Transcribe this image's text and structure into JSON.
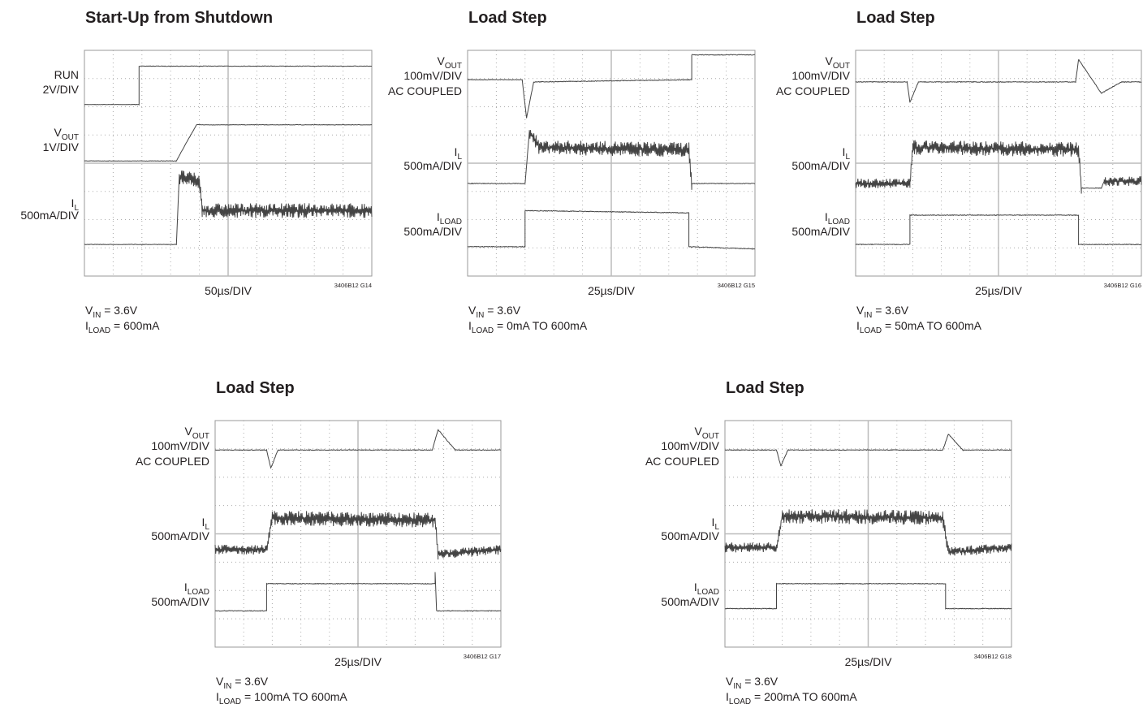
{
  "panels": [
    {
      "title": "Start-Up from Shutdown",
      "channels": [
        {
          "name": "RUN",
          "scale": "2V/DIV"
        },
        {
          "name": "V",
          "sub": "OUT",
          "scale": "1V/DIV"
        },
        {
          "name": "I",
          "sub": "L",
          "scale": "500mA/DIV"
        }
      ],
      "timebase": "50µs/DIV",
      "figure_id": "3406B12 G14",
      "conditions": [
        {
          "name": "V",
          "sub": "IN",
          "text": " = 3.6V"
        },
        {
          "name": "I",
          "sub": "LOAD",
          "text": " = 600mA"
        }
      ]
    },
    {
      "title": "Load Step",
      "channels": [
        {
          "name": "V",
          "sub": "OUT",
          "scale": "100mV/DIV",
          "note": "AC COUPLED"
        },
        {
          "name": "I",
          "sub": "L",
          "scale": "500mA/DIV"
        },
        {
          "name": "I",
          "sub": "LOAD",
          "scale": "500mA/DIV"
        }
      ],
      "timebase": "25µs/DIV",
      "figure_id": "3406B12 G15",
      "conditions": [
        {
          "name": "V",
          "sub": "IN",
          "text": " = 3.6V"
        },
        {
          "name": "I",
          "sub": "LOAD",
          "text": " = 0mA TO 600mA"
        }
      ]
    },
    {
      "title": "Load Step",
      "channels": [
        {
          "name": "V",
          "sub": "OUT",
          "scale": "100mV/DIV",
          "note": "AC COUPLED"
        },
        {
          "name": "I",
          "sub": "L",
          "scale": "500mA/DIV"
        },
        {
          "name": "I",
          "sub": "LOAD",
          "scale": "500mA/DIV"
        }
      ],
      "timebase": "25µs/DIV",
      "figure_id": "3406B12 G16",
      "conditions": [
        {
          "name": "V",
          "sub": "IN",
          "text": " = 3.6V"
        },
        {
          "name": "I",
          "sub": "LOAD",
          "text": " = 50mA TO 600mA"
        }
      ]
    },
    {
      "title": "Load Step",
      "channels": [
        {
          "name": "V",
          "sub": "OUT",
          "scale": "100mV/DIV",
          "note": "AC COUPLED"
        },
        {
          "name": "I",
          "sub": "L",
          "scale": "500mA/DIV"
        },
        {
          "name": "I",
          "sub": "LOAD",
          "scale": "500mA/DIV"
        }
      ],
      "timebase": "25µs/DIV",
      "figure_id": "3406B12 G17",
      "conditions": [
        {
          "name": "V",
          "sub": "IN",
          "text": " = 3.6V"
        },
        {
          "name": "I",
          "sub": "LOAD",
          "text": " = 100mA TO 600mA"
        }
      ]
    },
    {
      "title": "Load Step",
      "channels": [
        {
          "name": "V",
          "sub": "OUT",
          "scale": "100mV/DIV",
          "note": "AC COUPLED"
        },
        {
          "name": "I",
          "sub": "L",
          "scale": "500mA/DIV"
        },
        {
          "name": "I",
          "sub": "LOAD",
          "scale": "500mA/DIV"
        }
      ],
      "timebase": "25µs/DIV",
      "figure_id": "3406B12 G18",
      "conditions": [
        {
          "name": "V",
          "sub": "IN",
          "text": " = 3.6V"
        },
        {
          "name": "I",
          "sub": "LOAD",
          "text": " = 200mA TO 600mA"
        }
      ]
    }
  ]
}
